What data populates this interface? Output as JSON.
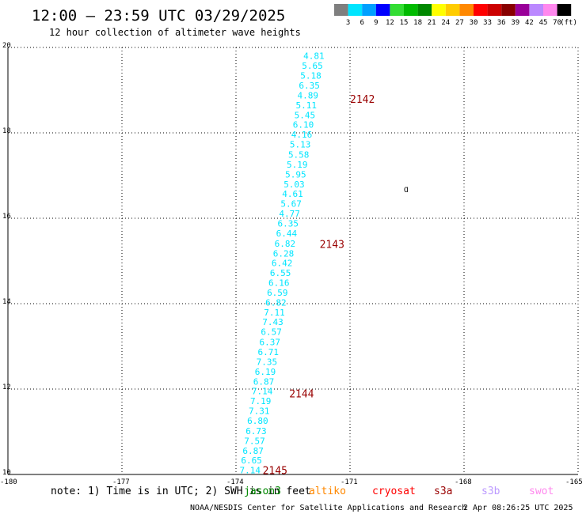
{
  "header": {
    "title": "12:00 – 23:59 UTC 03/29/2025",
    "subtitle": "12 hour collection of altimeter wave heights"
  },
  "colorbar": {
    "unit": "(ft)",
    "entries": [
      {
        "label": "3",
        "color": "#7f7f7f"
      },
      {
        "label": "6",
        "color": "#00e5ff"
      },
      {
        "label": "9",
        "color": "#00a0ff"
      },
      {
        "label": "12",
        "color": "#0000ff"
      },
      {
        "label": "15",
        "color": "#33dd33"
      },
      {
        "label": "18",
        "color": "#00bb00"
      },
      {
        "label": "21",
        "color": "#008800"
      },
      {
        "label": "24",
        "color": "#ffff00"
      },
      {
        "label": "27",
        "color": "#ffcc00"
      },
      {
        "label": "30",
        "color": "#ff8800"
      },
      {
        "label": "33",
        "color": "#ff0000"
      },
      {
        "label": "36",
        "color": "#cc0000"
      },
      {
        "label": "39",
        "color": "#880000"
      },
      {
        "label": "42",
        "color": "#990099"
      },
      {
        "label": "45",
        "color": "#bb88ff"
      },
      {
        "label": "70",
        "color": "#ff88ee"
      },
      {
        "label": "",
        "color": "#000000"
      }
    ]
  },
  "footer": {
    "note": "note: 1) Time is in UTC; 2) SWH is in feet",
    "missions": [
      {
        "label": "jason3",
        "color": "#008800"
      },
      {
        "label": "altiko",
        "color": "#ff8800"
      },
      {
        "label": "cryosat",
        "color": "#ff0000"
      },
      {
        "label": "s3a",
        "color": "#990000"
      },
      {
        "label": "s3b",
        "color": "#bb99ff"
      },
      {
        "label": "swot",
        "color": "#ff88ee"
      }
    ],
    "credit": "NOAA/NESDIS Center for Satellite Applications and Research",
    "timestamp": "2 Apr 08:26:25 UTC 2025"
  },
  "chart_data": {
    "type": "scatter",
    "title": "12:00 – 23:59 UTC 03/29/2025",
    "xlim": [
      -180,
      -165
    ],
    "ylim": [
      10,
      20
    ],
    "xticks": [
      "-180",
      "-177",
      "-174",
      "-171",
      "-168",
      "-165"
    ],
    "yticks": [
      "10",
      "12",
      "14",
      "16",
      "18",
      "20"
    ],
    "grid": true,
    "point_color": "#00e5ff",
    "time_label_color": "#990000",
    "points": [
      {
        "x": -173.63,
        "y": 10.1,
        "v": "7.14"
      },
      {
        "x": -173.59,
        "y": 10.33,
        "v": "6.65"
      },
      {
        "x": -173.55,
        "y": 10.56,
        "v": "6.87"
      },
      {
        "x": -173.51,
        "y": 10.79,
        "v": "7.57"
      },
      {
        "x": -173.47,
        "y": 11.02,
        "v": "6.73"
      },
      {
        "x": -173.43,
        "y": 11.26,
        "v": "6.80"
      },
      {
        "x": -173.39,
        "y": 11.49,
        "v": "7.31"
      },
      {
        "x": -173.35,
        "y": 11.72,
        "v": "7.19"
      },
      {
        "x": -173.31,
        "y": 11.95,
        "v": "7.14"
      },
      {
        "x": -173.27,
        "y": 12.18,
        "v": "6.87"
      },
      {
        "x": -173.23,
        "y": 12.41,
        "v": "6.19"
      },
      {
        "x": -173.19,
        "y": 12.64,
        "v": "7.35"
      },
      {
        "x": -173.15,
        "y": 12.87,
        "v": "6.71"
      },
      {
        "x": -173.11,
        "y": 13.1,
        "v": "6.37"
      },
      {
        "x": -173.07,
        "y": 13.34,
        "v": "6.57"
      },
      {
        "x": -173.03,
        "y": 13.57,
        "v": "7.43"
      },
      {
        "x": -172.99,
        "y": 13.8,
        "v": "7.11"
      },
      {
        "x": -172.95,
        "y": 14.03,
        "v": "6.82"
      },
      {
        "x": -172.91,
        "y": 14.26,
        "v": "6.59"
      },
      {
        "x": -172.87,
        "y": 14.49,
        "v": "6.16"
      },
      {
        "x": -172.83,
        "y": 14.72,
        "v": "6.55"
      },
      {
        "x": -172.79,
        "y": 14.95,
        "v": "6.42"
      },
      {
        "x": -172.75,
        "y": 15.18,
        "v": "6.28"
      },
      {
        "x": -172.71,
        "y": 15.41,
        "v": "6.82"
      },
      {
        "x": -172.67,
        "y": 15.65,
        "v": "6.44"
      },
      {
        "x": -172.63,
        "y": 15.88,
        "v": "6.35"
      },
      {
        "x": -172.59,
        "y": 16.11,
        "v": "4.77"
      },
      {
        "x": -172.55,
        "y": 16.34,
        "v": "5.67"
      },
      {
        "x": -172.51,
        "y": 16.57,
        "v": "4.61"
      },
      {
        "x": -172.47,
        "y": 16.8,
        "v": "5.03"
      },
      {
        "x": -172.43,
        "y": 17.03,
        "v": "5.95"
      },
      {
        "x": -172.39,
        "y": 17.26,
        "v": "5.19"
      },
      {
        "x": -172.35,
        "y": 17.49,
        "v": "5.58"
      },
      {
        "x": -172.31,
        "y": 17.73,
        "v": "5.13"
      },
      {
        "x": -172.27,
        "y": 17.96,
        "v": "4.16"
      },
      {
        "x": -172.23,
        "y": 18.19,
        "v": "6.10"
      },
      {
        "x": -172.19,
        "y": 18.42,
        "v": "5.45"
      },
      {
        "x": -172.15,
        "y": 18.65,
        "v": "5.11"
      },
      {
        "x": -172.11,
        "y": 18.88,
        "v": "4.89"
      },
      {
        "x": -172.07,
        "y": 19.11,
        "v": "6.35"
      },
      {
        "x": -172.03,
        "y": 19.34,
        "v": "5.18"
      },
      {
        "x": -171.99,
        "y": 19.57,
        "v": "5.65"
      },
      {
        "x": -171.95,
        "y": 19.81,
        "v": "4.81"
      }
    ],
    "time_labels": [
      {
        "x": -173.3,
        "y": 10.1,
        "v": "2145"
      },
      {
        "x": -172.6,
        "y": 11.9,
        "v": "2144"
      },
      {
        "x": -171.8,
        "y": 15.4,
        "v": "2143"
      },
      {
        "x": -171.0,
        "y": 18.8,
        "v": "2142"
      }
    ]
  }
}
